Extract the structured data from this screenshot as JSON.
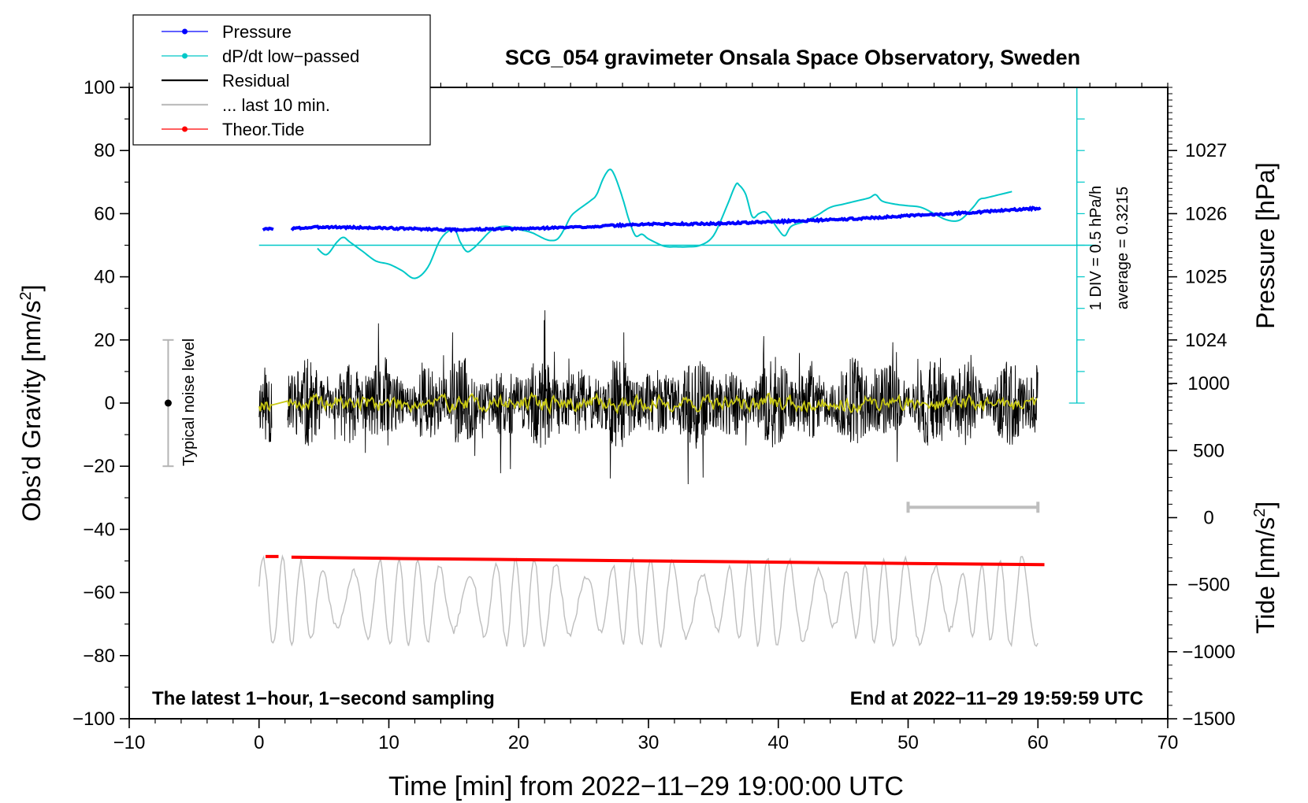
{
  "chart_data": {
    "type": "line",
    "title": "SCG_054 gravimeter Onsala Space Observatory, Sweden",
    "xlabel": "Time [min] from 2022−11−29 19:00:00 UTC",
    "ylabel_left_main": "Obs’d Gravity [nm/s",
    "ylabel_left_sup": "2",
    "ylabel_left_end": "]",
    "ylabel_right_top": "Pressure [hPa]",
    "ylabel_right_bottom_main": "Tide [nm/s",
    "ylabel_right_bottom_sup": "2",
    "ylabel_right_bottom_end": "]",
    "xlim": [
      -10,
      70
    ],
    "ylim": [
      -100,
      100
    ],
    "x_ticks": [
      -10,
      0,
      10,
      20,
      30,
      40,
      50,
      60,
      70
    ],
    "x_tick_labels": [
      "−10",
      "0",
      "10",
      "20",
      "30",
      "40",
      "50",
      "60",
      "70"
    ],
    "y_ticks": [
      -100,
      -80,
      -60,
      -40,
      -20,
      0,
      20,
      40,
      60,
      80,
      100
    ],
    "y_tick_labels": [
      "−100",
      "−80",
      "−60",
      "−40",
      "−20",
      "0",
      "20",
      "40",
      "60",
      "80",
      "100"
    ],
    "pressure_axis": {
      "ticks": [
        1024,
        1025,
        1026,
        1027
      ],
      "tick_labels": [
        "1024",
        "1025",
        "1026",
        "1027"
      ],
      "range_hpa": [
        1023,
        1028
      ]
    },
    "tide_axis": {
      "ticks": [
        -1500,
        -1000,
        -500,
        0,
        500,
        1000
      ],
      "tick_labels": [
        "−1500",
        "−1000",
        "−500",
        "0",
        "500",
        "1000"
      ],
      "range": [
        -1500,
        1500
      ]
    },
    "legend": {
      "position": "top-left",
      "entries": [
        {
          "label": "Pressure",
          "color": "#0000ff",
          "marker": true
        },
        {
          "label": "dP/dt low−passed",
          "color": "#00c8c8",
          "marker": true
        },
        {
          "label": "Residual",
          "color": "#000000",
          "marker": false
        },
        {
          "label": "... last 10 min.",
          "color": "#bebebe",
          "marker": false
        },
        {
          "label": "Theor.Tide",
          "color": "#ff0000",
          "marker": true
        }
      ]
    },
    "annotations": {
      "bottom_left": "The latest 1−hour, 1−second sampling",
      "bottom_right": "End at 2022−11−29 19:59:59 UTC",
      "noise_label": "Typical noise level",
      "div_label": "1 DIV = 0.5 hPa/h",
      "average_label": "average = 0.3215"
    },
    "noise_bar": {
      "x": -7,
      "y_center": 0,
      "y_low": -20,
      "y_high": 20
    },
    "last10_bar": {
      "x_start": 50,
      "x_end": 60,
      "y": -33
    },
    "dpdt_baseline_y": 50,
    "dpdt_scale": {
      "x": 63,
      "y_bottom": 0,
      "y_top": 100,
      "divisions": 10
    },
    "series": [
      {
        "name": "Pressure",
        "color": "#0000ff",
        "x": [
          0.3,
          1.2,
          2.5,
          5,
          10,
          15,
          20,
          25,
          30,
          35,
          40,
          45,
          50,
          55,
          60.3
        ],
        "values": [
          55.0,
          55.3,
          55.3,
          55.8,
          55.4,
          54.9,
          55.2,
          55.8,
          56.7,
          56.8,
          57.5,
          58.2,
          59.3,
          60.4,
          61.8
        ]
      },
      {
        "name": "dP/dt low-passed",
        "color": "#00c8c8",
        "x": [
          4.5,
          5.2,
          6.0,
          6.5,
          7.0,
          8.0,
          9.0,
          10.0,
          11.0,
          12.0,
          13.0,
          14.0,
          15.0,
          15.5,
          16.0,
          16.5,
          17.0,
          18.0,
          19.0,
          20.0,
          21.0,
          22.0,
          22.5,
          23.0,
          23.5,
          24.0,
          24.5,
          25.5,
          26.0,
          26.5,
          27.0,
          27.4,
          28.0,
          28.5,
          29.0,
          29.5,
          30.0,
          31.0,
          31.5,
          32.0,
          33.0,
          34.0,
          35.0,
          36.0,
          36.7,
          37.0,
          37.5,
          38.0,
          38.5,
          39.0,
          39.5,
          40.0,
          40.5,
          41.0,
          42.0,
          43.0,
          44.0,
          45.0,
          46.0,
          47.0,
          47.5,
          48.0,
          49.0,
          50.0,
          51.0,
          52.0,
          53.0,
          54.0,
          55.0,
          55.5,
          56.0,
          57.0,
          58.0
        ],
        "values": [
          49,
          47,
          51,
          52.5,
          51,
          48,
          45,
          44,
          42,
          39.5,
          43,
          52,
          55,
          51,
          48,
          49,
          51,
          55,
          56,
          55,
          54,
          52,
          51.5,
          52,
          55,
          59,
          61,
          64,
          66,
          71,
          74,
          72,
          65,
          58,
          53,
          53.5,
          52,
          50,
          49.5,
          49.5,
          49.5,
          50,
          53,
          62,
          69,
          69,
          66,
          59,
          60,
          60.5,
          58,
          55,
          53,
          56,
          57.5,
          59.5,
          62,
          63,
          64,
          65,
          66,
          64,
          63,
          62.5,
          62,
          60,
          58,
          58,
          62,
          64.5,
          65,
          66,
          67
        ]
      },
      {
        "name": "Residual",
        "color": "#000000",
        "x_range": [
          0,
          60
        ],
        "gap": [
          1.0,
          2.2
        ],
        "amplitude_nm_s2": 12
      },
      {
        "name": "Residual smoothed",
        "color": "#c8c814",
        "x_range": [
          0,
          60
        ],
        "amplitude_nm_s2": 2
      },
      {
        "name": "... last 10 min.",
        "color": "#bebebe",
        "x_range": [
          0,
          60
        ],
        "center_y": -63,
        "amplitude_nm_s2": 14
      },
      {
        "name": "Theor.Tide",
        "color": "#ff0000",
        "x": [
          0.5,
          1.5,
          2.5,
          10,
          20,
          30,
          40,
          50,
          60.5
        ],
        "values": [
          -48.6,
          -48.6,
          -48.8,
          -49.2,
          -49.6,
          -50.0,
          -50.4,
          -50.8,
          -51.2
        ]
      }
    ]
  }
}
